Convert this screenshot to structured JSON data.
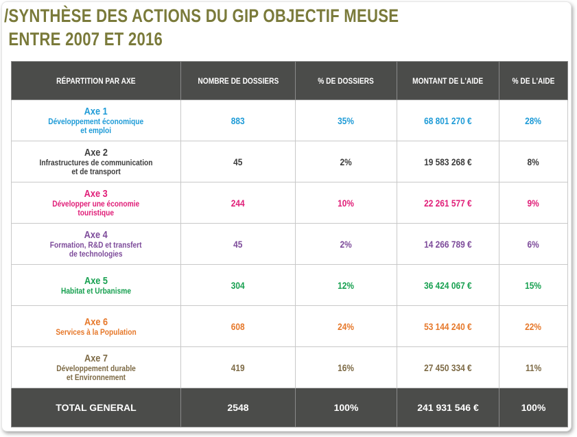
{
  "title": {
    "line1": "SYNTHÈSE DES ACTIONS DU GIP OBJECTIF MEUSE",
    "line2": "ENTRE 2007 ET 2016",
    "slash": "/"
  },
  "headers": [
    "RÉPARTITION PAR AXE",
    "NOMBRE DE DOSSIERS",
    "% DE DOSSIERS",
    "MONTANT DE L'AIDE",
    "% DE L'AIDE"
  ],
  "rows": [
    {
      "axe": "Axe 1",
      "desc1": "Développement économique",
      "desc2": "et emploi",
      "dossiers": "883",
      "pct_dossiers": "35%",
      "montant": "68 801 270 €",
      "pct_aide": "28%",
      "color": "#1e9bd7"
    },
    {
      "axe": "Axe 2",
      "desc1": "Infrastructures de communication",
      "desc2": "et de transport",
      "dossiers": "45",
      "pct_dossiers": "2%",
      "montant": "19 583 268 €",
      "pct_aide": "8%",
      "color": "#3c3c3c"
    },
    {
      "axe": "Axe 3",
      "desc1": "Développer une économie",
      "desc2": "touristique",
      "dossiers": "244",
      "pct_dossiers": "10%",
      "montant": "22 261 577 €",
      "pct_aide": "9%",
      "color": "#e01e78"
    },
    {
      "axe": "Axe 4",
      "desc1": "Formation, R&D et transfert",
      "desc2": "de technologies",
      "dossiers": "45",
      "pct_dossiers": "2%",
      "montant": "14 266 789 €",
      "pct_aide": "6%",
      "color": "#7d4b9a"
    },
    {
      "axe": "Axe 5",
      "desc1": "Habitat et Urbanisme",
      "desc2": "",
      "dossiers": "304",
      "pct_dossiers": "12%",
      "montant": "36 424 067 €",
      "pct_aide": "15%",
      "color": "#17a050"
    },
    {
      "axe": "Axe 6",
      "desc1": "Services à la Population",
      "desc2": "",
      "dossiers": "608",
      "pct_dossiers": "24%",
      "montant": "53 144 240 €",
      "pct_aide": "22%",
      "color": "#e6782a"
    },
    {
      "axe": "Axe 7",
      "desc1": "Développement durable",
      "desc2": "et Environnement",
      "dossiers": "419",
      "pct_dossiers": "16%",
      "montant": "27 450 334 €",
      "pct_aide": "11%",
      "color": "#7d6a45"
    }
  ],
  "total": {
    "label": "TOTAL GENERAL",
    "dossiers": "2548",
    "pct_dossiers": "100%",
    "montant": "241 931 546 €",
    "pct_aide": "100%"
  }
}
